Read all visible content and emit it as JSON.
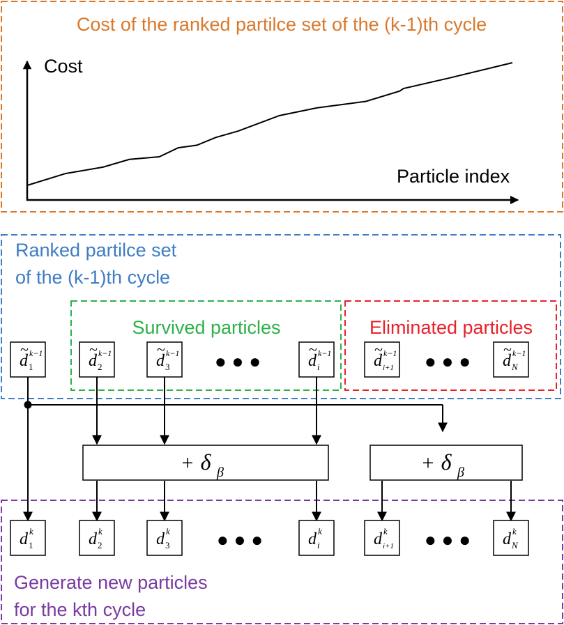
{
  "panels": {
    "cost": {
      "title": "Cost of the ranked partilce set of the (k-1)th cycle",
      "color": "#D9782B"
    },
    "ranked": {
      "title_line1": "Ranked partilce set",
      "title_line2": "of the (k-1)th cycle",
      "color": "#3E7CC4"
    },
    "survived": {
      "title": "Survived particles",
      "color": "#2EB04A"
    },
    "eliminated": {
      "title": "Eliminated particles",
      "color": "#E8212A"
    },
    "generate": {
      "title_line1": "Generate new particles",
      "title_line2": "for the kth cycle",
      "color": "#7A3AA0"
    }
  },
  "chart_data": {
    "type": "line",
    "ylabel": "Cost",
    "xlabel": "Particle index",
    "series": [
      {
        "values": [
          0.05,
          0.14,
          0.19,
          0.25,
          0.27,
          0.34,
          0.36,
          0.42,
          0.47,
          0.59,
          0.65,
          0.7,
          0.78,
          0.8,
          0.88,
          1.0
        ]
      }
    ],
    "x": [
      0.0,
      0.1,
      0.2,
      0.27,
      0.35,
      0.4,
      0.45,
      0.5,
      0.56,
      0.67,
      0.77,
      0.9,
      0.99,
      1.0,
      1.12,
      1.29
    ],
    "grid": false
  },
  "ranked_particles": [
    {
      "base": "d",
      "sub": "1",
      "sup": "k−1"
    },
    {
      "base": "d",
      "sub": "2",
      "sup": "k−1"
    },
    {
      "base": "d",
      "sub": "3",
      "sup": "k−1"
    },
    {
      "base": "d",
      "sub": "i",
      "sup": "k−1"
    },
    {
      "base": "d",
      "sub": "i+1",
      "sup": "k−1"
    },
    {
      "base": "d",
      "sub": "N",
      "sup": "k−1"
    }
  ],
  "new_particles": [
    {
      "base": "d",
      "sub": "1",
      "sup": "k"
    },
    {
      "base": "d",
      "sub": "2",
      "sup": "k"
    },
    {
      "base": "d",
      "sub": "3",
      "sup": "k"
    },
    {
      "base": "d",
      "sub": "i",
      "sup": "k"
    },
    {
      "base": "d",
      "sub": "i+1",
      "sup": "k"
    },
    {
      "base": "d",
      "sub": "N",
      "sup": "k"
    }
  ],
  "operators": [
    {
      "sign": "+",
      "symbol": "δ",
      "sub": "β"
    },
    {
      "sign": "+",
      "symbol": "δ",
      "sub": "β"
    }
  ],
  "tilde": "~",
  "ellipsis": "● ● ●"
}
